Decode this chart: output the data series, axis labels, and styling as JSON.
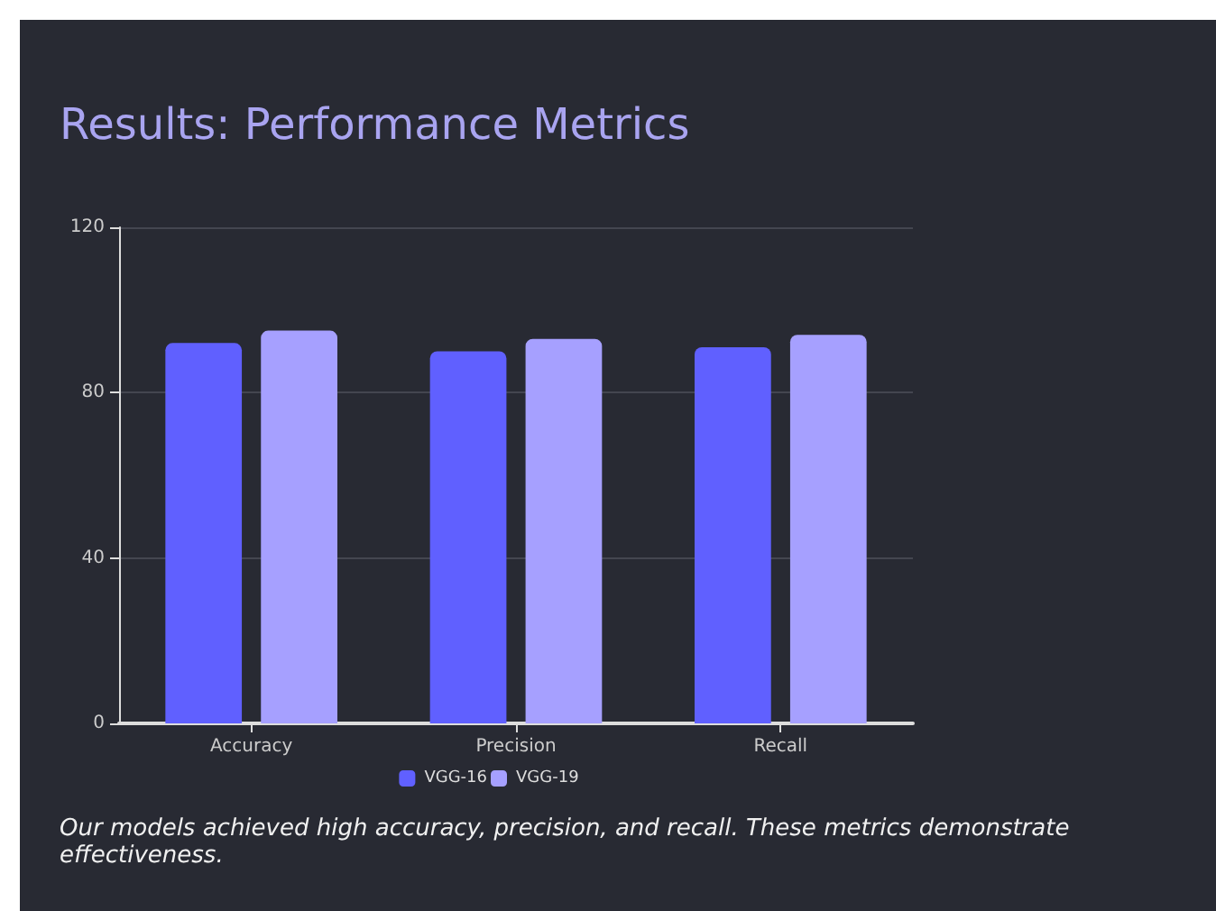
{
  "chart_data": {
    "type": "bar",
    "title": "Results: Performance Metrics",
    "categories": [
      "Accuracy",
      "Precision",
      "Recall"
    ],
    "series": [
      {
        "name": "VGG-16",
        "color": "#6060ff",
        "values": [
          92,
          90,
          91
        ]
      },
      {
        "name": "VGG-19",
        "color": "#a6a0ff",
        "values": [
          95,
          93,
          94
        ]
      }
    ],
    "ylim": [
      0,
      120
    ],
    "yticks": [
      0,
      40,
      80,
      120
    ],
    "grid": "y",
    "legend": "bottom",
    "annotations": [
      "Our models achieved high accuracy, precision, and recall. These metrics demonstrate effectiveness."
    ]
  }
}
